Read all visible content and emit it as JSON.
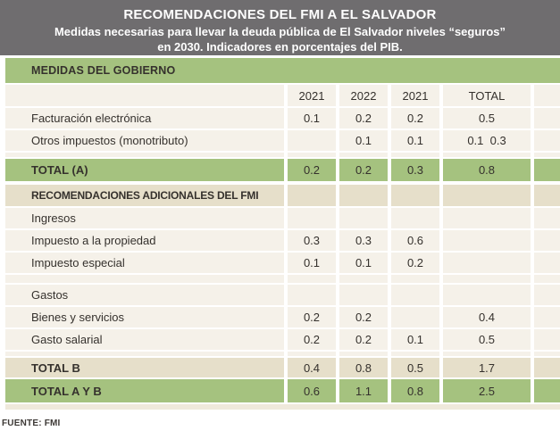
{
  "header": {
    "title": "RECOMENDACIONES DEL FMI A EL SALVADOR",
    "subtitle_line1": "Medidas necesarias para llevar la deuda pública de El Salvador niveles “seguros”",
    "subtitle_line2": "en 2030. Indicadores en porcentajes del PIB."
  },
  "table": {
    "section_government": "MEDIDAS DEL GOBIERNO",
    "columns": [
      "2021",
      "2022",
      "2021",
      "TOTAL"
    ],
    "rows": [
      {
        "label": "Facturación electrónica",
        "values": [
          "0.1",
          "0.2",
          "0.2",
          "0.5"
        ]
      },
      {
        "label": "Otros impuestos (monotributo)",
        "values": [
          "",
          "0.1",
          "0.1",
          "0.1  0.3"
        ]
      },
      {
        "label": "TOTAL (A)",
        "values": [
          "0.2",
          "0.2",
          "0.3",
          "0.8"
        ]
      },
      {
        "label": "RECOMENDACIONES ADICIONALES DEL FMI",
        "values": [
          "",
          "",
          "",
          ""
        ]
      },
      {
        "label": "Ingresos",
        "values": [
          "",
          "",
          "",
          ""
        ]
      },
      {
        "label": "Impuesto a la propiedad",
        "values": [
          "0.3",
          "0.3",
          "0.6",
          ""
        ]
      },
      {
        "label": "Impuesto especial",
        "values": [
          "0.1",
          "0.1",
          "0.2",
          ""
        ]
      },
      {
        "label": "Gastos",
        "values": [
          "",
          "",
          "",
          ""
        ]
      },
      {
        "label": "Bienes y servicios",
        "values": [
          "0.2",
          "0.2",
          "",
          "0.4"
        ]
      },
      {
        "label": "Gasto salarial",
        "values": [
          "0.2",
          "0.2",
          "0.1",
          "0.5"
        ]
      },
      {
        "label": "TOTAL B",
        "values": [
          "0.4",
          "0.8",
          "0.5",
          "1.7"
        ]
      },
      {
        "label": "TOTAL A Y B",
        "values": [
          "0.6",
          "1.1",
          "0.8",
          "2.5"
        ]
      }
    ]
  },
  "footer": {
    "source": "FUENTE: FMI"
  },
  "colors": {
    "header_bg": "#6f6d6f",
    "green": "#a5c27f",
    "row_light": "#f5f1e9",
    "row_dark": "#e6dfca",
    "text": "#35312d"
  }
}
